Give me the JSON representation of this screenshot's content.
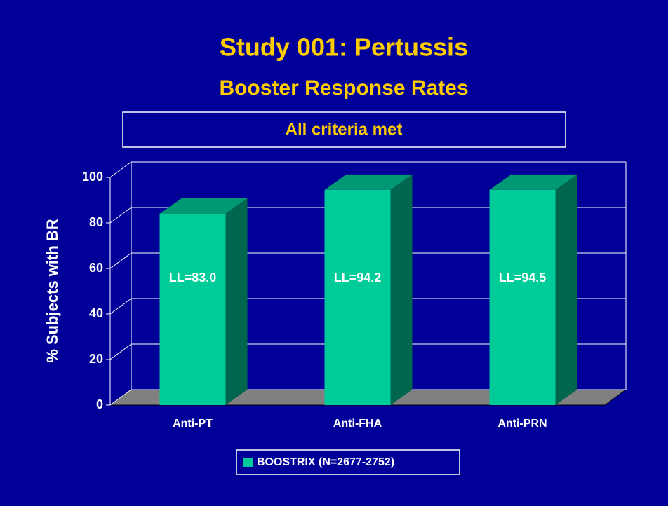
{
  "chart_data": {
    "type": "bar3d",
    "title": "Study 001: Pertussis",
    "subtitle": "Booster Response Rates",
    "annotation": "All criteria met",
    "y_label": "% Subjects with BR",
    "categories": [
      "Anti-PT",
      "Anti-FHA",
      "Anti-PRN"
    ],
    "series": [
      {
        "name": "BOOSTRIX (N=2677-2752)",
        "color": "#00cc99",
        "values": [
          84,
          94.5,
          94.5
        ]
      }
    ],
    "bar_annotations": [
      "LL=83.0",
      "LL=94.2",
      "LL=94.5"
    ],
    "ylim": [
      0,
      100
    ],
    "yticks": [
      0,
      20,
      40,
      60,
      80,
      100
    ],
    "grid": true
  }
}
